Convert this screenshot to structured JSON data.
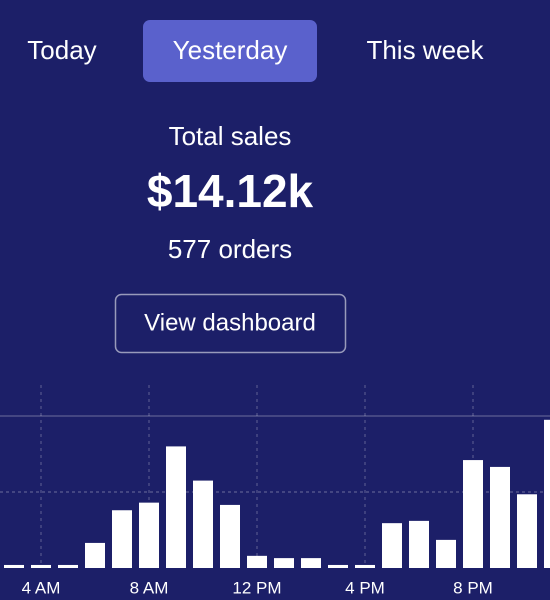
{
  "tabs": [
    "Today",
    "Yesterday",
    "This week"
  ],
  "selected_tab": 1,
  "summary": {
    "label": "Total sales",
    "value": "$14.12k",
    "orders": "577 orders"
  },
  "button": "View dashboard",
  "chart_data": {
    "type": "bar",
    "categories": [
      null,
      "4 AM",
      null,
      null,
      null,
      "8 AM",
      null,
      null,
      null,
      "12 PM",
      null,
      null,
      null,
      "4 PM",
      null,
      null,
      null,
      "8 PM",
      null,
      null,
      null
    ],
    "values": [
      0.04,
      0.04,
      0.04,
      0.33,
      0.76,
      0.86,
      1.6,
      1.15,
      0.83,
      0.16,
      0.13,
      0.13,
      0.04,
      0.04,
      0.59,
      0.62,
      0.37,
      1.42,
      1.33,
      0.97,
      1.95
    ],
    "color": "#ffffff",
    "ylim": [
      0,
      2
    ],
    "yticks": [
      1,
      2
    ],
    "grid": true
  }
}
